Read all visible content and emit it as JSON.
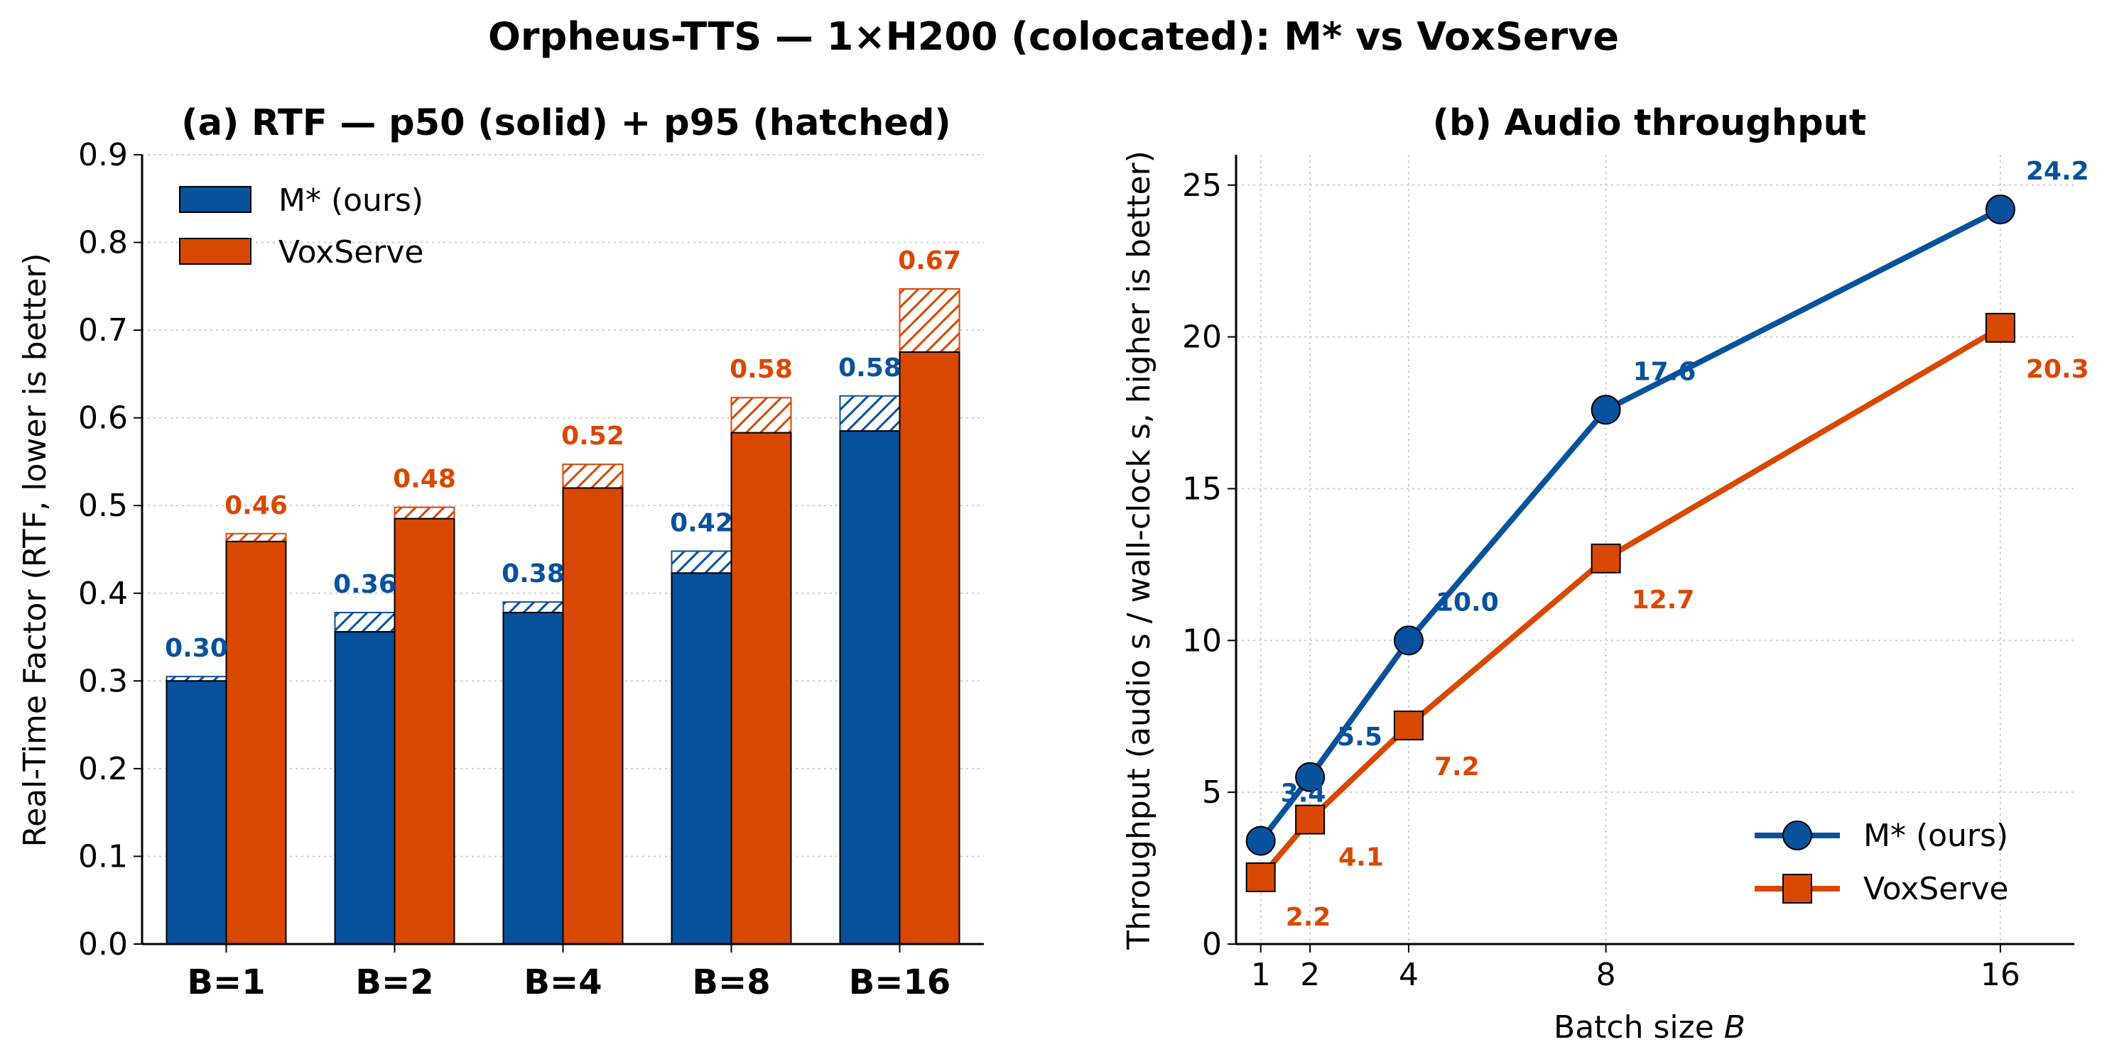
{
  "figure": {
    "title": "Orpheus-TTS — 1×H200 (colocated): M* vs VoxServe"
  },
  "colors": {
    "m_star": "#08519c",
    "voxserve": "#d94801"
  },
  "chart_data": [
    {
      "type": "bar",
      "title": "(a) RTF — p50 (solid) + p95 (hatched)",
      "xlabel": "",
      "ylabel": "Real-Time Factor (RTF, lower is better)",
      "ylim": [
        0,
        0.9
      ],
      "yticks": [
        "0.0",
        "0.1",
        "0.2",
        "0.3",
        "0.4",
        "0.5",
        "0.6",
        "0.7",
        "0.8",
        "0.9"
      ],
      "categories": [
        "B=1",
        "B=2",
        "B=4",
        "B=8",
        "B=16"
      ],
      "legend": {
        "position": "top-left",
        "items": [
          "M* (ours)",
          "VoxServe"
        ]
      },
      "grid": "y-dotted",
      "series": [
        {
          "name": "M* (ours)",
          "p50": [
            0.3,
            0.356,
            0.378,
            0.423,
            0.585
          ],
          "p95": [
            0.305,
            0.378,
            0.39,
            0.448,
            0.625
          ],
          "labels": [
            "0.30",
            "0.36",
            "0.38",
            "0.42",
            "0.58"
          ]
        },
        {
          "name": "VoxServe",
          "p50": [
            0.459,
            0.485,
            0.52,
            0.583,
            0.675
          ],
          "p95": [
            0.468,
            0.498,
            0.547,
            0.623,
            0.747
          ],
          "labels": [
            "0.46",
            "0.48",
            "0.52",
            "0.58",
            "0.67"
          ]
        }
      ]
    },
    {
      "type": "line",
      "title": "(b) Audio throughput",
      "xlabel": "Batch size B",
      "ylabel": "Throughput (audio s / wall-clock s, higher is better)",
      "xlim": [
        0.5,
        17.5
      ],
      "ylim": [
        0,
        26
      ],
      "xticks": [
        1,
        2,
        4,
        8,
        16
      ],
      "yticks": [
        0,
        5,
        10,
        15,
        20,
        25
      ],
      "x": [
        1,
        2,
        4,
        8,
        16
      ],
      "legend": {
        "position": "bottom-right",
        "items": [
          "M* (ours)",
          "VoxServe"
        ]
      },
      "grid": "both-dotted",
      "series": [
        {
          "name": "M* (ours)",
          "marker": "circle",
          "values": [
            3.4,
            5.5,
            10.0,
            17.6,
            24.2
          ],
          "labels": [
            "3.4",
            "5.5",
            "10.0",
            "17.6",
            "24.2"
          ]
        },
        {
          "name": "VoxServe",
          "marker": "square",
          "values": [
            2.2,
            4.1,
            7.2,
            12.7,
            20.3
          ],
          "labels": [
            "2.2",
            "4.1",
            "7.2",
            "12.7",
            "20.3"
          ]
        }
      ]
    }
  ]
}
